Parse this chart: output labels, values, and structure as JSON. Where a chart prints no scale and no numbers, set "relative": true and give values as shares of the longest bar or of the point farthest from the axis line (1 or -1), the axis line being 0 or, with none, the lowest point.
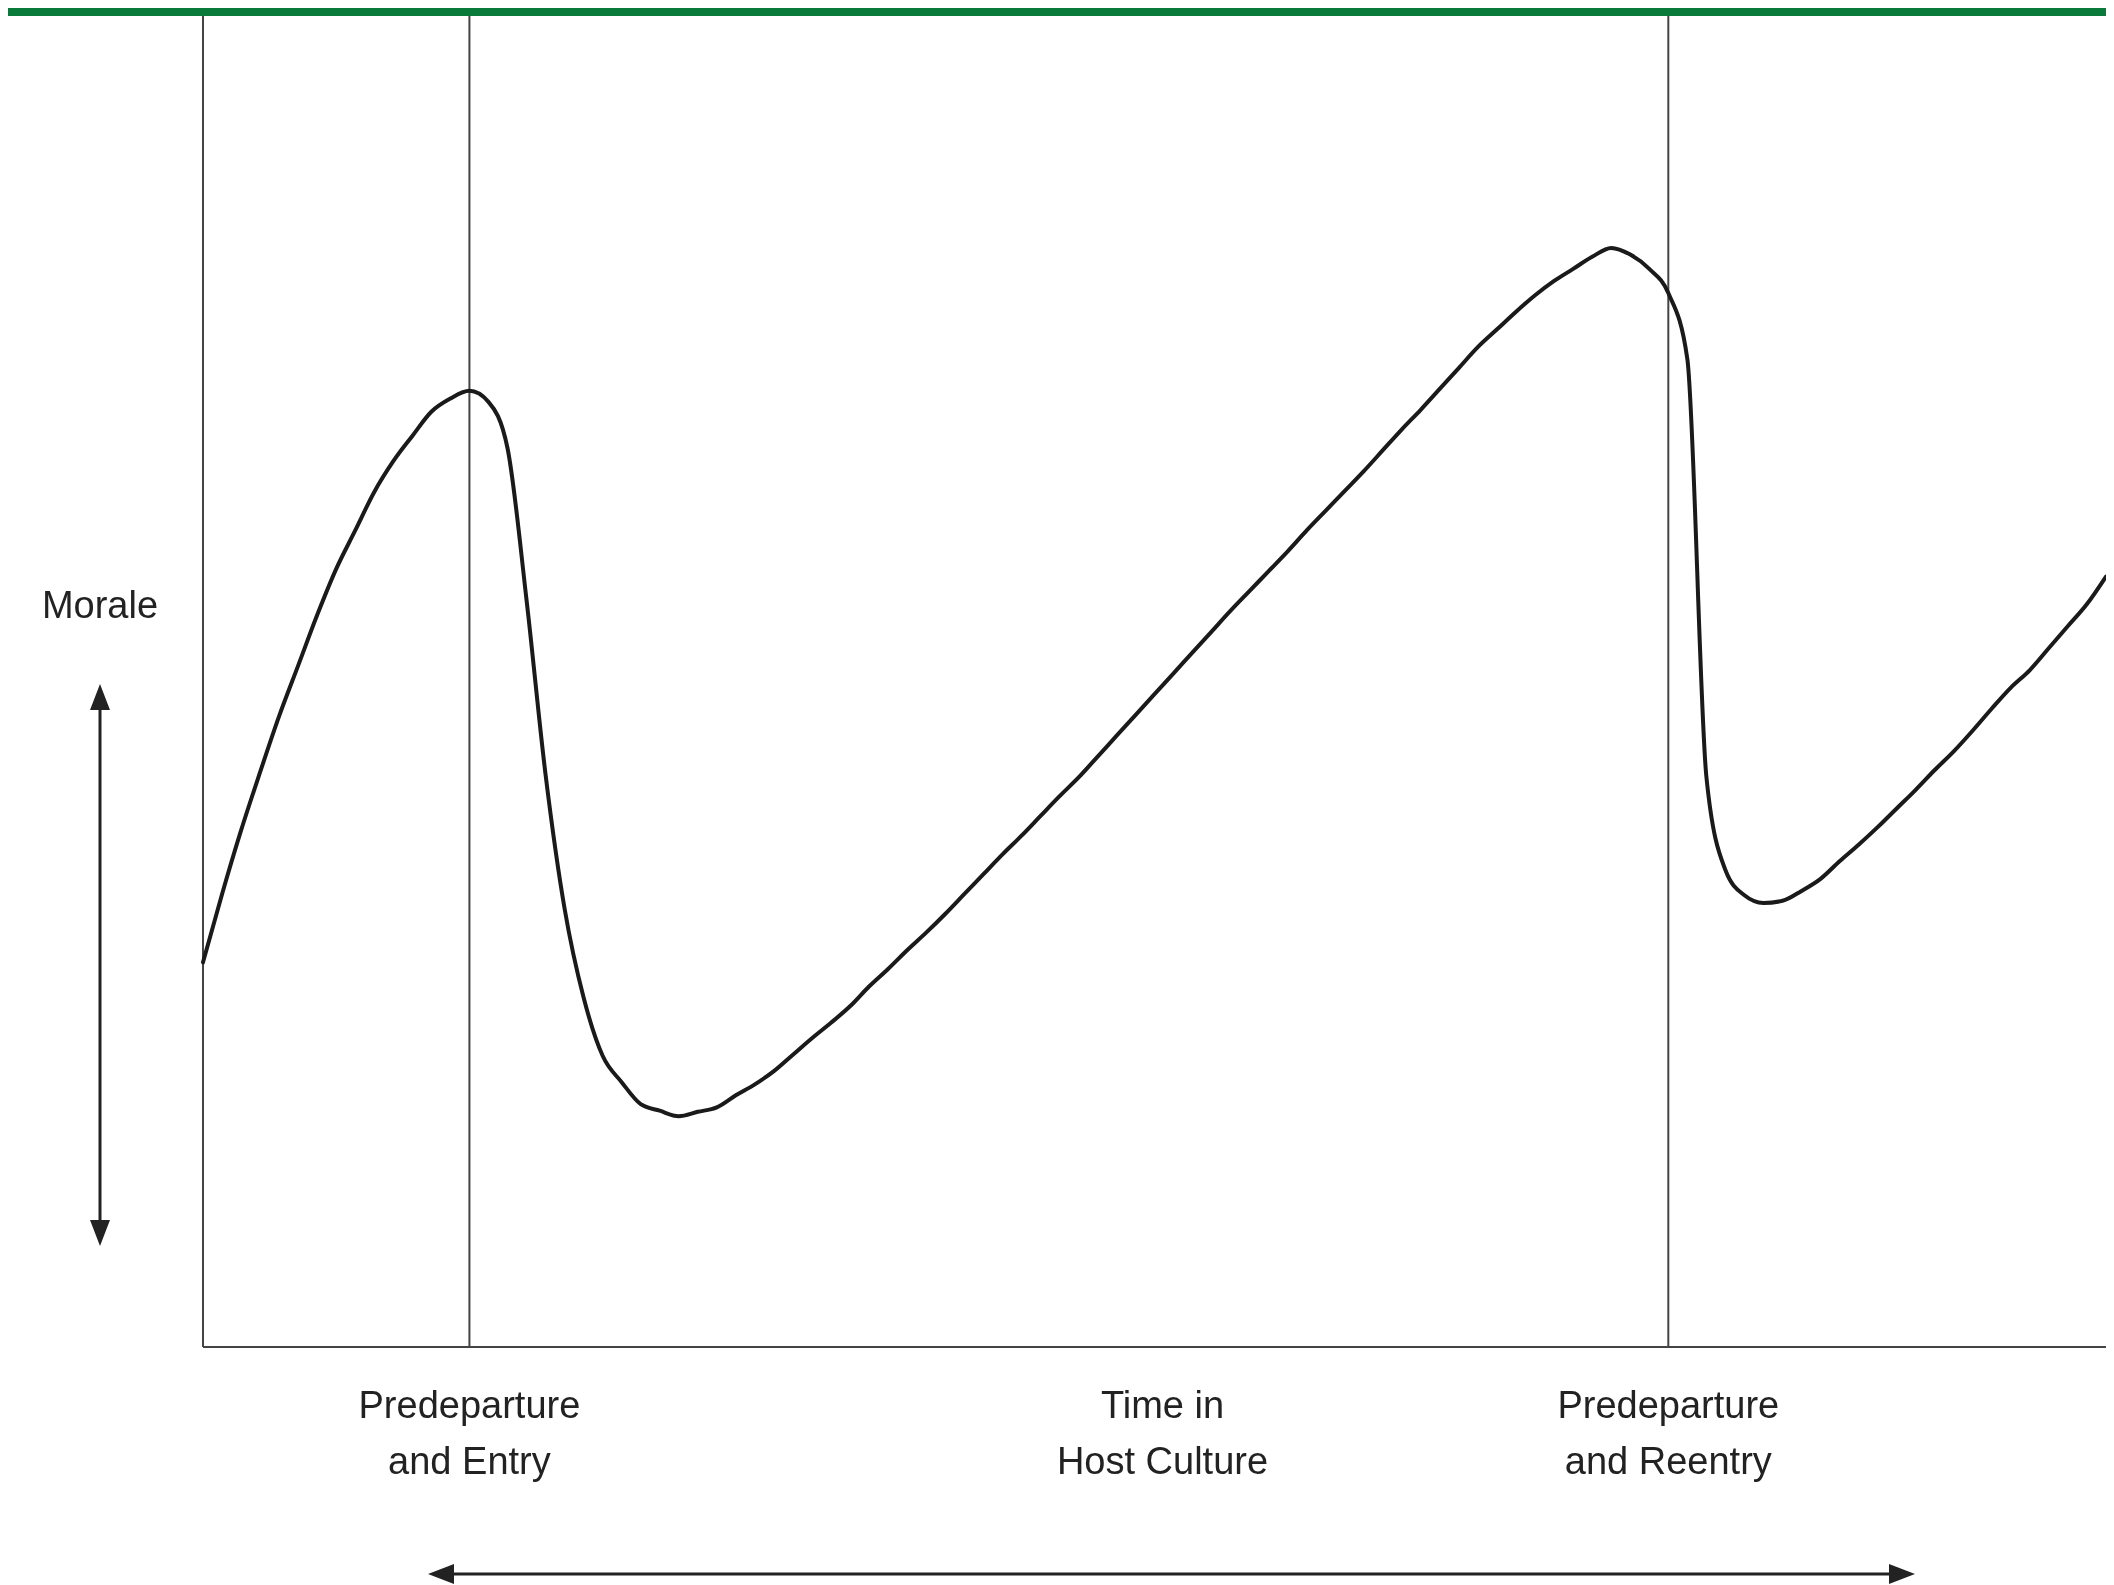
{
  "chart_data": {
    "type": "line",
    "relative": true,
    "ylabel": "Morale",
    "xlabel": "Time in\nHost Culture",
    "categories": [
      null,
      null,
      null,
      null,
      null,
      null,
      null,
      null,
      null,
      null,
      null,
      null,
      null,
      null,
      "Predeparture\nand Entry",
      null,
      null,
      null,
      null,
      null,
      null,
      null,
      null,
      null,
      null,
      null,
      null,
      null,
      null,
      null,
      null,
      null,
      null,
      null,
      null,
      null,
      null,
      null,
      null,
      null,
      null,
      null,
      null,
      null,
      null,
      null,
      null,
      null,
      null,
      null,
      null,
      null,
      null,
      null,
      null,
      null,
      null,
      null,
      null,
      null,
      null,
      null,
      null,
      null,
      null,
      null,
      null,
      null,
      null,
      null,
      null,
      null,
      null,
      null,
      null,
      null,
      null,
      "Predeparture\nand Reentry",
      null,
      null,
      null,
      null,
      null,
      null,
      null,
      null,
      null,
      null,
      null,
      null,
      null,
      null,
      null,
      null,
      null,
      null,
      null,
      null,
      null,
      null,
      null
    ],
    "ref_lines": [
      {
        "axis": "x",
        "value": "Predeparture\nand Entry",
        "color": "#444444"
      },
      {
        "axis": "x",
        "value": "Predeparture\nand Reentry",
        "color": "#444444"
      }
    ],
    "marker": "none",
    "line_style": "solid",
    "series": [
      {
        "color": "#1a1a1a",
        "values": [
          0.35,
          0.412,
          0.47,
          0.523,
          0.574,
          0.62,
          0.666,
          0.708,
          0.743,
          0.778,
          0.806,
          0.829,
          0.851,
          0.863,
          0.87,
          0.86,
          0.818,
          0.68,
          0.521,
          0.399,
          0.318,
          0.265,
          0.241,
          0.221,
          0.215,
          0.21,
          0.214,
          0.218,
          0.229,
          0.239,
          0.251,
          0.266,
          0.281,
          0.295,
          0.31,
          0.328,
          0.344,
          0.361,
          0.377,
          0.394,
          0.412,
          0.43,
          0.448,
          0.465,
          0.483,
          0.501,
          0.518,
          0.537,
          0.556,
          0.575,
          0.594,
          0.613,
          0.632,
          0.651,
          0.67,
          0.688,
          0.706,
          0.724,
          0.743,
          0.761,
          0.779,
          0.797,
          0.816,
          0.835,
          0.853,
          0.872,
          0.891,
          0.91,
          0.926,
          0.942,
          0.957,
          0.97,
          0.981,
          0.992,
          1,
          0.994,
          0.981,
          0.959,
          0.899,
          0.519,
          0.434,
          0.411,
          0.404,
          0.406,
          0.415,
          0.426,
          0.442,
          0.457,
          0.473,
          0.49,
          0.507,
          0.525,
          0.542,
          0.561,
          0.581,
          0.6,
          0.616,
          0.636,
          0.656,
          0.676,
          0.701
        ]
      }
    ]
  }
}
